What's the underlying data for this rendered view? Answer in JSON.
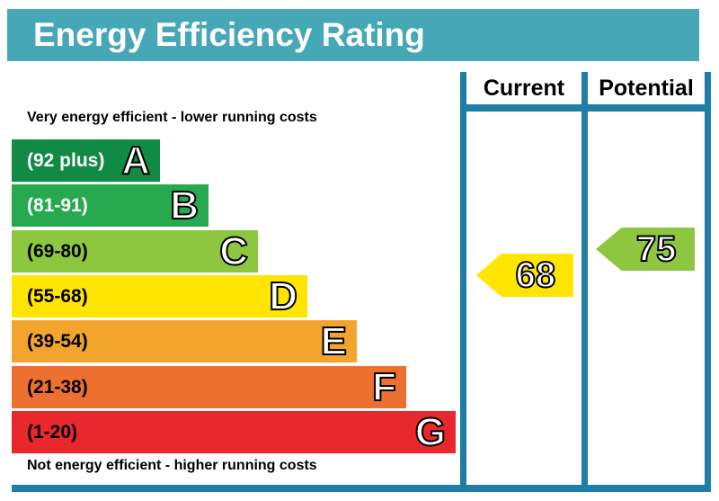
{
  "title": "Energy Efficiency Rating",
  "notes": {
    "top": "Very energy efficient - lower running costs",
    "bottom": "Not energy efficient - higher running costs"
  },
  "columns": {
    "current_label": "Current",
    "potential_label": "Potential"
  },
  "bands": [
    {
      "letter": "A",
      "range": "(92 plus)",
      "color": "#118a45",
      "text_color": "#ffffff"
    },
    {
      "letter": "B",
      "range": "(81-91)",
      "color": "#27aa4f",
      "text_color": "#ffffff"
    },
    {
      "letter": "C",
      "range": "(69-80)",
      "color": "#8dc63f",
      "text_color": "#000000"
    },
    {
      "letter": "D",
      "range": "(55-68)",
      "color": "#ffe500",
      "text_color": "#000000"
    },
    {
      "letter": "E",
      "range": "(39-54)",
      "color": "#f2a42d",
      "text_color": "#000000"
    },
    {
      "letter": "F",
      "range": "(21-38)",
      "color": "#ee7030",
      "text_color": "#000000"
    },
    {
      "letter": "G",
      "range": "(1-20)",
      "color": "#e8282d",
      "text_color": "#000000"
    }
  ],
  "ratings": {
    "current": {
      "value": "68",
      "color": "#ffe500"
    },
    "potential": {
      "value": "75",
      "color": "#8dc63f"
    }
  },
  "colors": {
    "title_bar_bg": "#46a7b6",
    "grid_teal": "#1f7ea6",
    "title_text": "#ffffff"
  },
  "chart_data": {
    "type": "bar",
    "title": "Energy Efficiency Rating",
    "categories": [
      "A",
      "B",
      "C",
      "D",
      "E",
      "F",
      "G"
    ],
    "band_ranges": [
      "92 plus",
      "81-91",
      "69-80",
      "55-68",
      "39-54",
      "21-38",
      "1-20"
    ],
    "band_colors": [
      "#118a45",
      "#27aa4f",
      "#8dc63f",
      "#ffe500",
      "#f2a42d",
      "#ee7030",
      "#e8282d"
    ],
    "bar_relative_lengths": [
      165,
      219,
      274,
      329,
      384,
      439,
      494
    ],
    "current_rating": 68,
    "current_band": "D",
    "potential_rating": 75,
    "potential_band": "C",
    "legend_position": "right-columns",
    "annotations": [
      "Very energy efficient - lower running costs",
      "Not energy efficient - higher running costs"
    ]
  }
}
